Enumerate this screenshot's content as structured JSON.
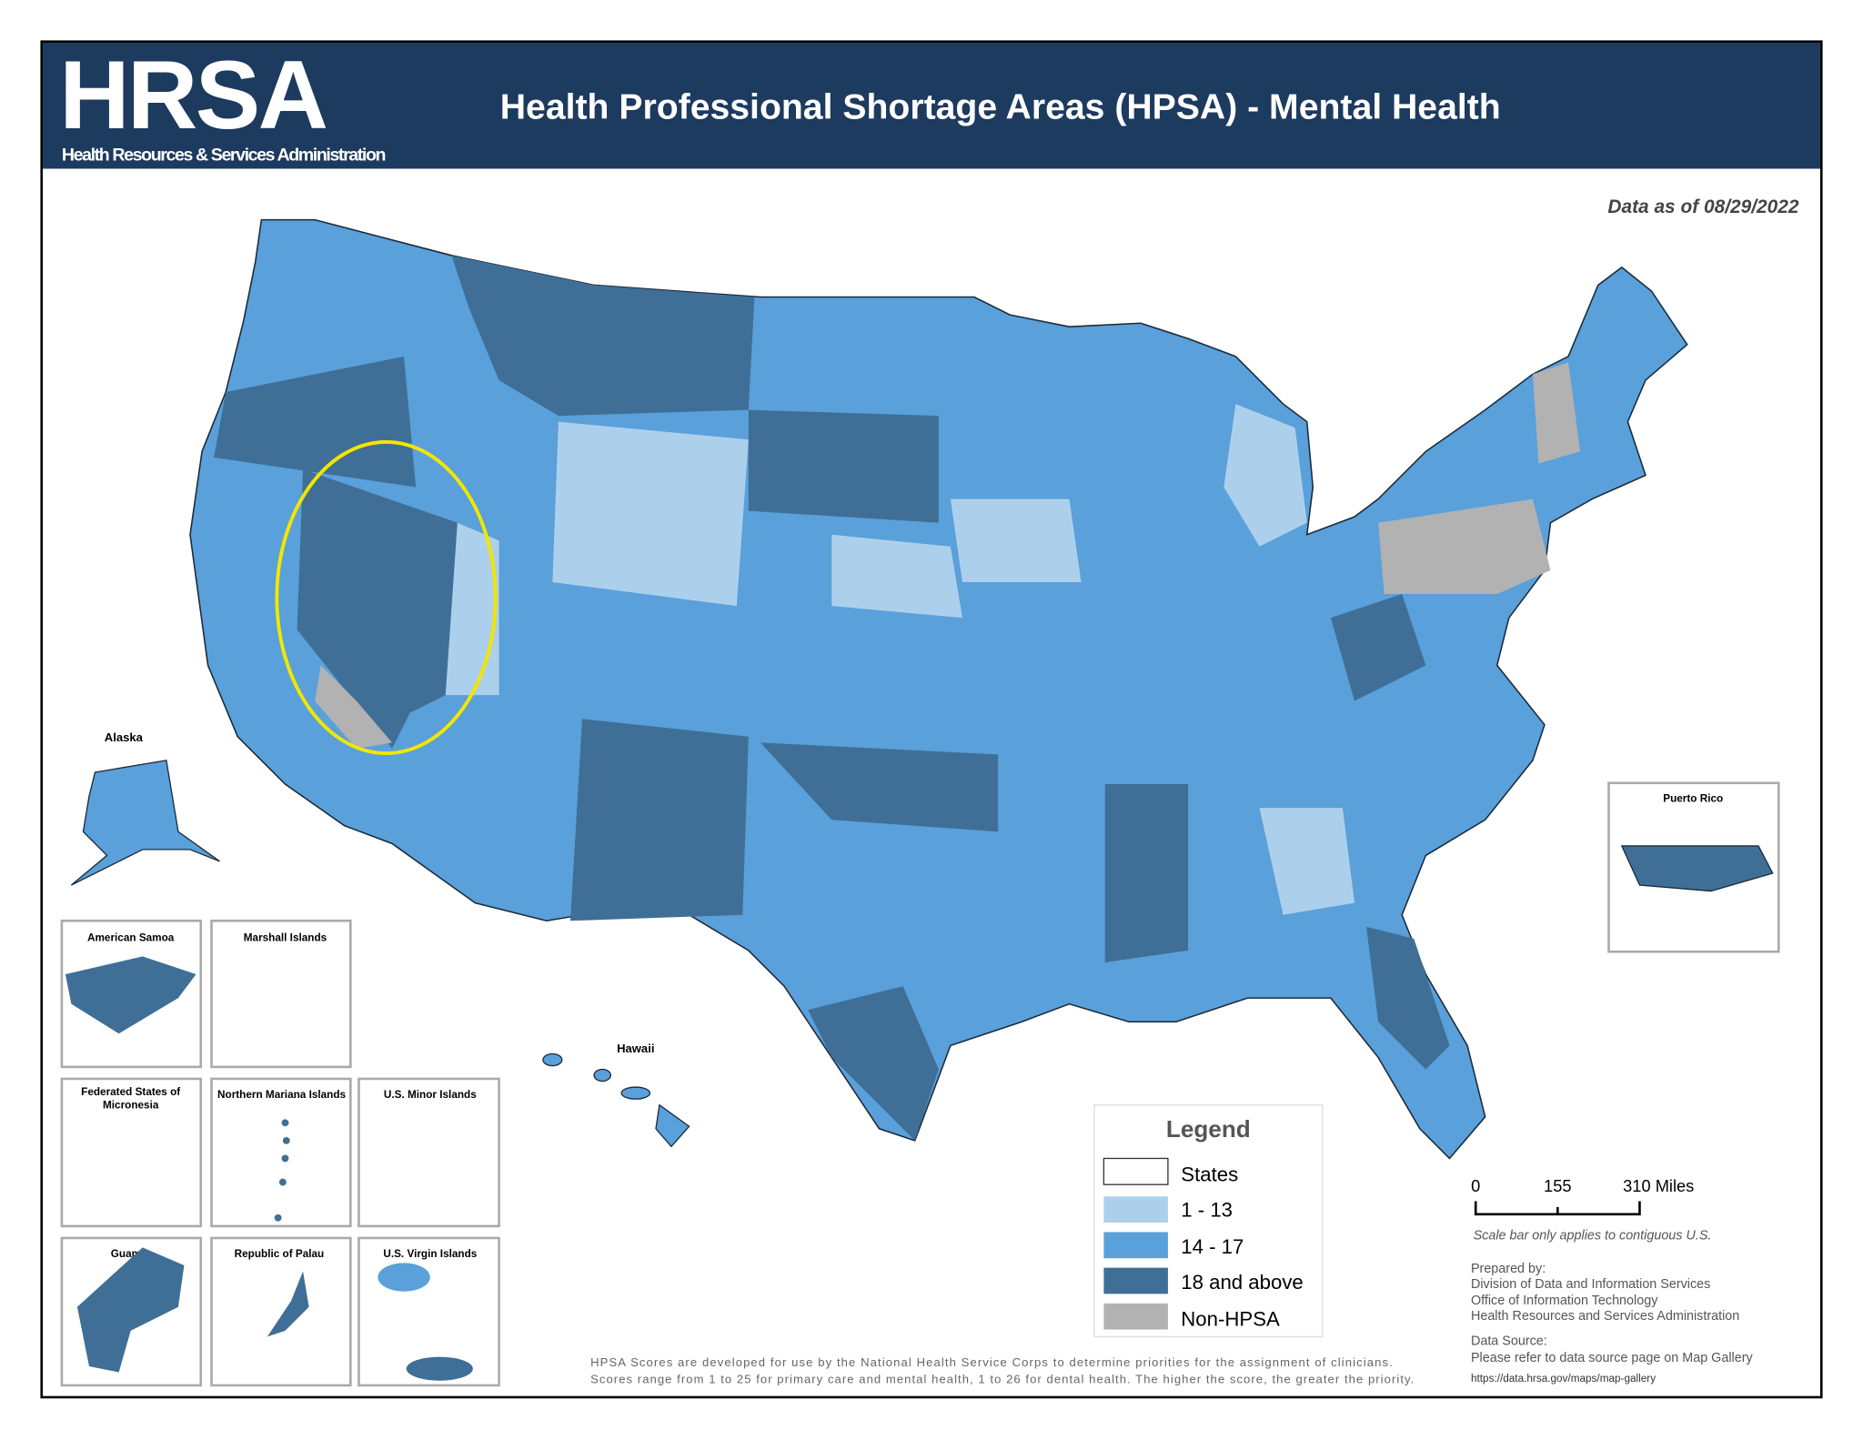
{
  "header": {
    "logo": "HRSA",
    "logo_subtitle": "Health Resources & Services Administration",
    "title": "Health Professional Shortage Areas (HPSA) - Mental Health"
  },
  "data_date": "Data as of 08/29/2022",
  "labels": {
    "alaska": "Alaska",
    "hawaii": "Hawaii",
    "puerto_rico": "Puerto Rico"
  },
  "insets": [
    {
      "label": "American Samoa"
    },
    {
      "label": "Marshall Islands"
    },
    {
      "label": "Federated States of",
      "label2": "Micronesia"
    },
    {
      "label": "Northern Mariana Islands"
    },
    {
      "label": "U.S. Minor Islands"
    },
    {
      "label": "Guam"
    },
    {
      "label": "Republic of Palau"
    },
    {
      "label": "U.S. Virgin Islands"
    }
  ],
  "legend": {
    "title": "Legend",
    "items": [
      {
        "label": "States",
        "color": "#ffffff"
      },
      {
        "label": "1 - 13",
        "color": "#acd0ec"
      },
      {
        "label": "14 - 17",
        "color": "#5aa0da"
      },
      {
        "label": "18 and above",
        "color": "#3f6f96"
      },
      {
        "label": "Non-HPSA",
        "color": "#b2b2b2"
      }
    ]
  },
  "scale_bar": {
    "ticks": [
      "0",
      "155",
      "310 Miles"
    ],
    "note": "Scale bar only applies to contiguous U.S."
  },
  "credits": {
    "prepared_by": "Prepared by:",
    "line1": "Division of Data and Information Services",
    "line2": "Office of Information Technology",
    "line3": "Health Resources and Services Administration",
    "source_label": "Data Source:",
    "source_text": "Please refer to data source page on Map Gallery",
    "url": "https://data.hrsa.gov/maps/map-gallery"
  },
  "footnote": {
    "line1": "HPSA Scores are developed for use by the National Health Service Corps to determine priorities for the assignment of clinicians.",
    "line2": "Scores range from 1 to 25 for primary care and mental health, 1 to 26 for dental health. The higher the score, the greater the priority."
  },
  "colors": {
    "header_bg": "#1d3a5f",
    "highlight_ellipse": "#f2e600"
  }
}
